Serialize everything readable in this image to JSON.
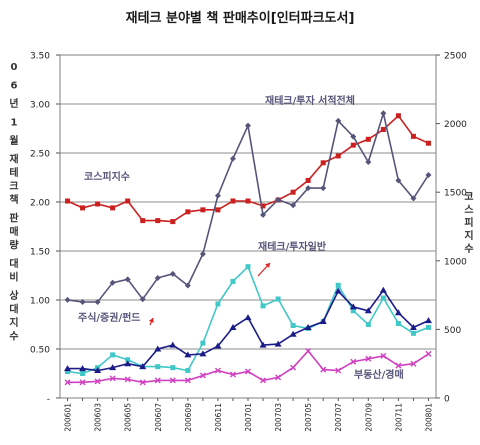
{
  "chart_data": {
    "type": "line",
    "title": "재테크 분야별 책 판매추이[인터파크도서]",
    "left_axis_label": "0 6 년 1 월 재테크책 판매량 대비 상대지수",
    "right_axis_label": "코스피지수",
    "left_axis": {
      "min": 0,
      "max": 3.5,
      "ticks": [
        "3.50",
        "3.00",
        "2.50",
        "2.00",
        "1.50",
        "1.00",
        "0.50",
        "-"
      ]
    },
    "right_axis": {
      "min": 0,
      "max": 2500,
      "ticks": [
        "2500",
        "2000",
        "1500",
        "1000",
        "500",
        "0"
      ]
    },
    "x": [
      "200601",
      "200602",
      "200603",
      "200604",
      "200605",
      "200606",
      "200607",
      "200608",
      "200609",
      "200610",
      "200611",
      "200612",
      "200701",
      "200702",
      "200703",
      "200704",
      "200705",
      "200706",
      "200707",
      "200708",
      "200709",
      "200710",
      "200711",
      "200712",
      "200801"
    ],
    "x_tick_labels": [
      "200601",
      "200603",
      "200605",
      "200607",
      "200609",
      "200611",
      "200701",
      "200703",
      "200705",
      "200707",
      "200709",
      "200711",
      "200801"
    ],
    "grid": "horizontal",
    "series": [
      {
        "name": "재테크/투자 서적전체",
        "axis": "left",
        "color": "#cc1f1f",
        "marker": "square",
        "values": [
          2.01,
          1.94,
          1.98,
          1.94,
          2.01,
          1.81,
          1.81,
          1.8,
          1.9,
          1.92,
          1.92,
          2.01,
          2.01,
          1.96,
          2.02,
          2.1,
          2.22,
          2.4,
          2.47,
          2.58,
          2.64,
          2.74,
          2.88,
          2.67,
          2.6
        ]
      },
      {
        "name": "코스피지수",
        "axis": "right",
        "color": "#55557a",
        "marker": "diamond",
        "values": [
          715,
          700,
          700,
          840,
          865,
          720,
          875,
          905,
          820,
          1050,
          1475,
          1745,
          1985,
          1335,
          1445,
          1405,
          1530,
          1530,
          2020,
          1905,
          1720,
          2075,
          1585,
          1455,
          1625
        ]
      },
      {
        "name": "재테크/투자일반",
        "axis": "left",
        "color": "#40c8c8",
        "marker": "square",
        "values": [
          0.27,
          0.25,
          0.31,
          0.44,
          0.39,
          0.32,
          0.32,
          0.31,
          0.28,
          0.56,
          0.96,
          1.19,
          1.34,
          0.94,
          1.01,
          0.74,
          0.71,
          0.78,
          1.15,
          0.89,
          0.75,
          1.02,
          0.76,
          0.66,
          0.72
        ]
      },
      {
        "name": "주식/증권/펀드",
        "axis": "left",
        "color": "#1c1c88",
        "marker": "triangle",
        "values": [
          0.3,
          0.3,
          0.28,
          0.31,
          0.35,
          0.32,
          0.5,
          0.54,
          0.44,
          0.45,
          0.53,
          0.72,
          0.82,
          0.54,
          0.55,
          0.65,
          0.72,
          0.78,
          1.09,
          0.93,
          0.89,
          1.1,
          0.87,
          0.72,
          0.79
        ]
      },
      {
        "name": "부동산/경매",
        "axis": "left",
        "color": "#d040c0",
        "marker": "cross",
        "values": [
          0.16,
          0.16,
          0.17,
          0.2,
          0.19,
          0.16,
          0.18,
          0.18,
          0.18,
          0.23,
          0.28,
          0.24,
          0.27,
          0.18,
          0.21,
          0.31,
          0.48,
          0.29,
          0.28,
          0.37,
          0.4,
          0.43,
          0.33,
          0.35,
          0.45
        ]
      }
    ],
    "annotations": [
      {
        "text": "재테크/투자 서적전체",
        "series": "재테크/투자 서적전체"
      },
      {
        "text": "코스피지수",
        "series": "코스피지수"
      },
      {
        "text": "재테크/투자일반",
        "series": "재테크/투자일반"
      },
      {
        "text": "주식/증권/펀드",
        "series": "주식/증권/펀드"
      },
      {
        "text": "부동산/경매",
        "series": "부동산/경매"
      }
    ]
  }
}
